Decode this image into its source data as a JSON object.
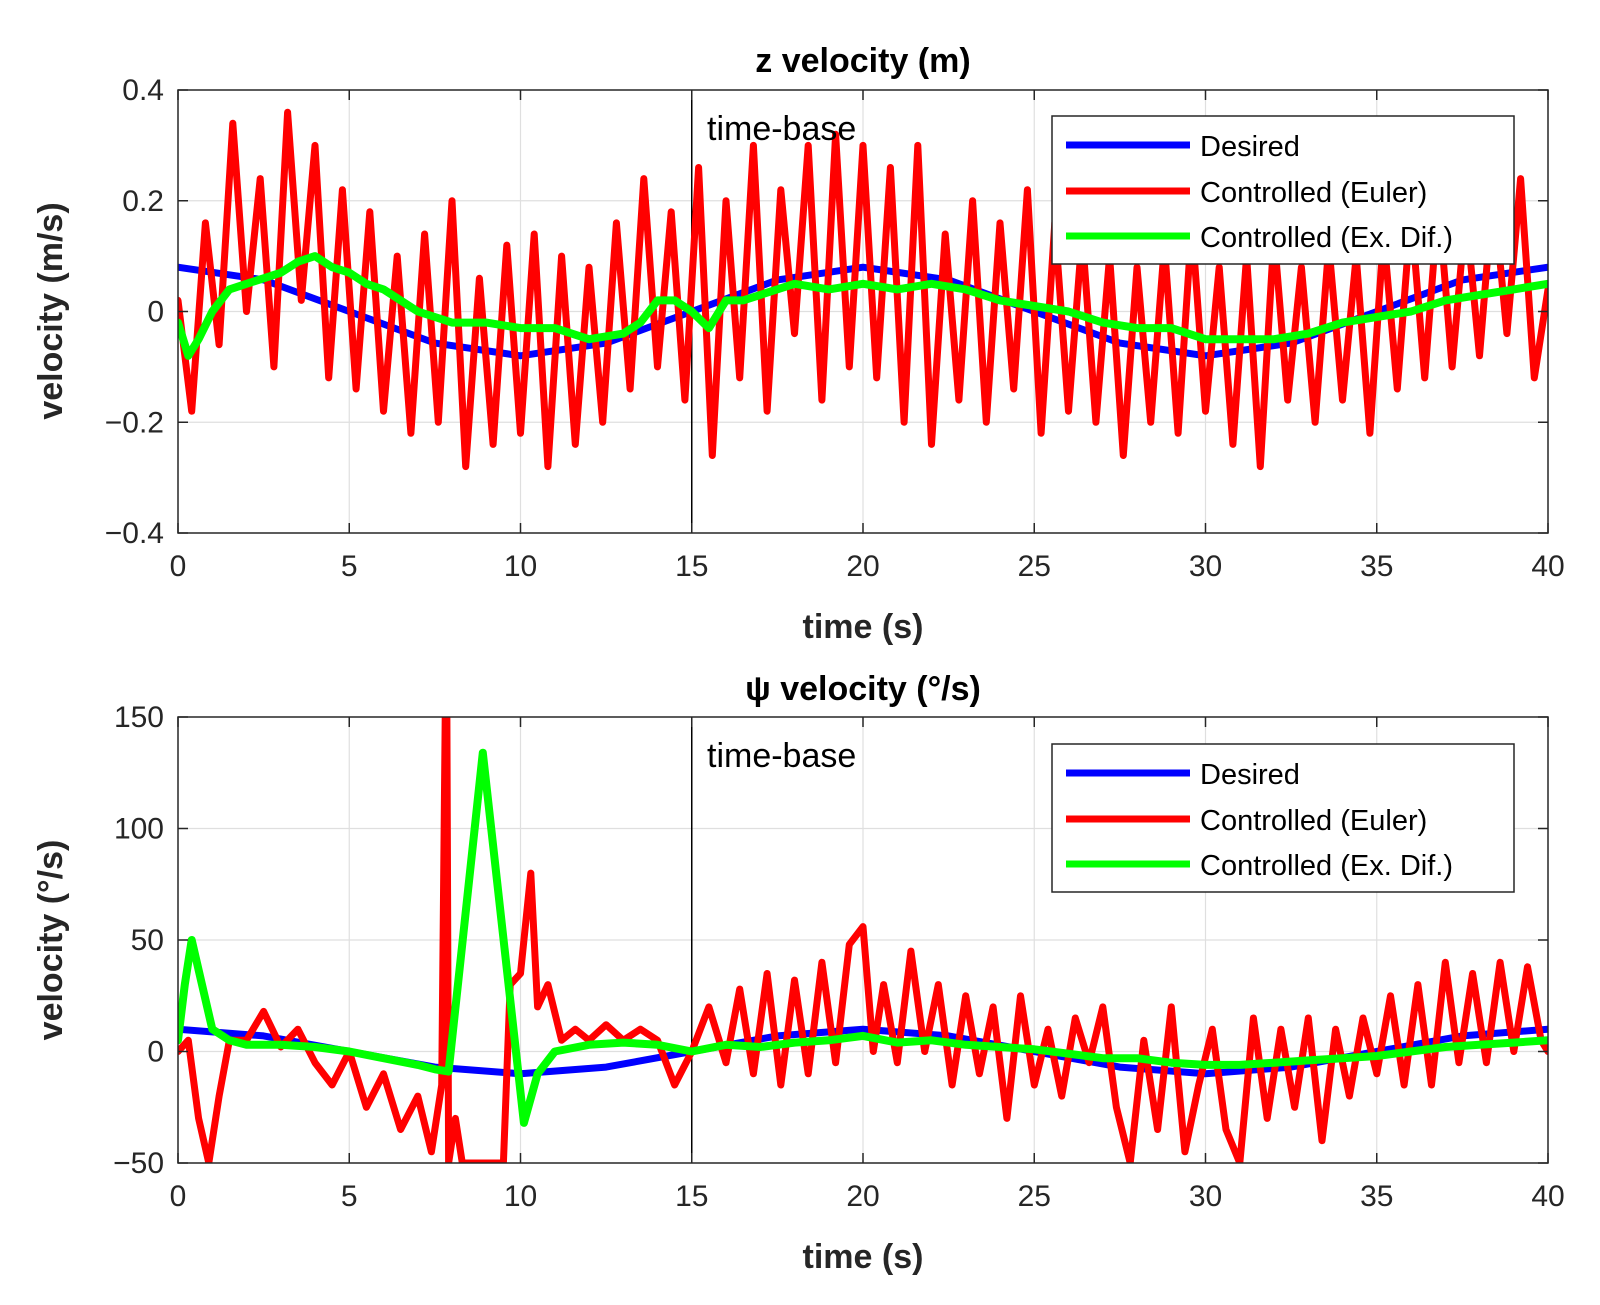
{
  "chart_data": [
    {
      "type": "line",
      "title": "z velocity (m)",
      "xlabel": "time (s)",
      "ylabel": "velocity (m/s)",
      "xlim": [
        0,
        40
      ],
      "ylim": [
        -0.4,
        0.4
      ],
      "xticks": [
        0,
        5,
        10,
        15,
        20,
        25,
        30,
        35,
        40
      ],
      "yticks": [
        -0.4,
        -0.2,
        0,
        0.2,
        0.4
      ],
      "xtick_labels": [
        "0",
        "5",
        "10",
        "15",
        "20",
        "25",
        "30",
        "35",
        "40"
      ],
      "ytick_labels": [
        "−0.4",
        "−0.2",
        "0",
        "0.2",
        "0.4"
      ],
      "grid": true,
      "annotation": "time-base",
      "annotation_x": 15,
      "vline_x": 15,
      "legend_position": "top-right",
      "series": [
        {
          "name": "Desired",
          "color": "#0000ff",
          "x": [
            0,
            2.5,
            5,
            7.5,
            10,
            12.5,
            15,
            17.5,
            20,
            22.5,
            25,
            27.5,
            30,
            32.5,
            35,
            37.5,
            40
          ],
          "y": [
            0.08,
            0.057,
            0.0,
            -0.057,
            -0.08,
            -0.057,
            0.0,
            0.057,
            0.08,
            0.057,
            0.0,
            -0.057,
            -0.08,
            -0.057,
            0.0,
            0.057,
            0.08
          ]
        },
        {
          "name": "Controlled (Euler)",
          "color": "#ff0000",
          "x": [
            0,
            0.4,
            0.8,
            1.2,
            1.6,
            2.0,
            2.4,
            2.8,
            3.2,
            3.6,
            4.0,
            4.4,
            4.8,
            5.2,
            5.6,
            6.0,
            6.4,
            6.8,
            7.2,
            7.6,
            8.0,
            8.4,
            8.8,
            9.2,
            9.6,
            10.0,
            10.4,
            10.8,
            11.2,
            11.6,
            12.0,
            12.4,
            12.8,
            13.2,
            13.6,
            14.0,
            14.4,
            14.8,
            15.2,
            15.6,
            16.0,
            16.4,
            16.8,
            17.2,
            17.6,
            18.0,
            18.4,
            18.8,
            19.2,
            19.6,
            20.0,
            20.4,
            20.8,
            21.2,
            21.6,
            22.0,
            22.4,
            22.8,
            23.2,
            23.6,
            24.0,
            24.4,
            24.8,
            25.2,
            25.6,
            26.0,
            26.4,
            26.8,
            27.2,
            27.6,
            28.0,
            28.4,
            28.8,
            29.2,
            29.6,
            30.0,
            30.4,
            30.8,
            31.2,
            31.6,
            32.0,
            32.4,
            32.8,
            33.2,
            33.6,
            34.0,
            34.4,
            34.8,
            35.2,
            35.6,
            36.0,
            36.4,
            36.8,
            37.2,
            37.6,
            38.0,
            38.4,
            38.8,
            39.2,
            39.6,
            40.0
          ],
          "y": [
            0.02,
            -0.18,
            0.16,
            -0.06,
            0.34,
            0.0,
            0.24,
            -0.1,
            0.36,
            0.02,
            0.3,
            -0.12,
            0.22,
            -0.14,
            0.18,
            -0.18,
            0.1,
            -0.22,
            0.14,
            -0.2,
            0.2,
            -0.28,
            0.06,
            -0.24,
            0.12,
            -0.22,
            0.14,
            -0.28,
            0.1,
            -0.24,
            0.08,
            -0.2,
            0.16,
            -0.14,
            0.24,
            -0.1,
            0.18,
            -0.16,
            0.26,
            -0.26,
            0.2,
            -0.12,
            0.3,
            -0.18,
            0.22,
            -0.04,
            0.3,
            -0.16,
            0.32,
            -0.1,
            0.3,
            -0.12,
            0.26,
            -0.2,
            0.3,
            -0.24,
            0.14,
            -0.16,
            0.2,
            -0.2,
            0.16,
            -0.14,
            0.22,
            -0.22,
            0.16,
            -0.18,
            0.14,
            -0.2,
            0.1,
            -0.26,
            0.08,
            -0.2,
            0.12,
            -0.22,
            0.16,
            -0.18,
            0.08,
            -0.24,
            0.1,
            -0.28,
            0.14,
            -0.16,
            0.08,
            -0.2,
            0.12,
            -0.16,
            0.1,
            -0.22,
            0.14,
            -0.14,
            0.18,
            -0.12,
            0.2,
            -0.1,
            0.18,
            -0.08,
            0.22,
            -0.04,
            0.24,
            -0.12,
            0.04
          ]
        },
        {
          "name": "Controlled (Ex. Dif.)",
          "color": "#00ff00",
          "x": [
            0,
            0.3,
            0.6,
            1.0,
            1.5,
            2.0,
            2.5,
            3.0,
            3.5,
            4.0,
            4.5,
            5.0,
            5.5,
            6.0,
            6.5,
            7.0,
            7.5,
            8.0,
            9.0,
            10.0,
            11.0,
            12.0,
            13.0,
            13.5,
            14.0,
            14.5,
            15.0,
            15.5,
            16.0,
            16.5,
            17.0,
            18.0,
            19.0,
            20.0,
            21.0,
            22.0,
            23.0,
            24.0,
            25.0,
            26.0,
            27.0,
            28.0,
            29.0,
            30.0,
            31.0,
            32.0,
            33.0,
            34.0,
            35.0,
            36.0,
            37.0,
            38.0,
            39.0,
            40.0
          ],
          "y": [
            -0.02,
            -0.08,
            -0.05,
            0.0,
            0.04,
            0.05,
            0.06,
            0.07,
            0.09,
            0.1,
            0.08,
            0.07,
            0.05,
            0.04,
            0.02,
            0.0,
            -0.01,
            -0.02,
            -0.02,
            -0.03,
            -0.03,
            -0.05,
            -0.04,
            -0.02,
            0.02,
            0.02,
            0.0,
            -0.03,
            0.02,
            0.02,
            0.03,
            0.05,
            0.04,
            0.05,
            0.04,
            0.05,
            0.04,
            0.02,
            0.01,
            0.0,
            -0.02,
            -0.03,
            -0.03,
            -0.05,
            -0.05,
            -0.05,
            -0.04,
            -0.02,
            -0.01,
            0.0,
            0.02,
            0.03,
            0.04,
            0.05
          ]
        }
      ]
    },
    {
      "type": "line",
      "title": "ψ velocity (°/s)",
      "xlabel": "time (s)",
      "ylabel": "velocity (°/s)",
      "xlim": [
        0,
        40
      ],
      "ylim": [
        -50,
        150
      ],
      "xticks": [
        0,
        5,
        10,
        15,
        20,
        25,
        30,
        35,
        40
      ],
      "yticks": [
        -50,
        0,
        50,
        100,
        150
      ],
      "xtick_labels": [
        "0",
        "5",
        "10",
        "15",
        "20",
        "25",
        "30",
        "35",
        "40"
      ],
      "ytick_labels": [
        "−50",
        "0",
        "50",
        "100",
        "150"
      ],
      "grid": true,
      "annotation": "time-base",
      "annotation_x": 15,
      "vline_x": 15,
      "legend_position": "top-right",
      "series": [
        {
          "name": "Desired",
          "color": "#0000ff",
          "x": [
            0,
            2.5,
            5,
            7.5,
            10,
            12.5,
            15,
            17.5,
            20,
            22.5,
            25,
            27.5,
            30,
            32.5,
            35,
            37.5,
            40
          ],
          "y": [
            10,
            7,
            0,
            -7,
            -10,
            -7,
            0,
            7,
            10,
            7,
            0,
            -7,
            -10,
            -7,
            0,
            7,
            10
          ]
        },
        {
          "name": "Controlled (Euler)",
          "color": "#ff0000",
          "x": [
            0,
            0.3,
            0.6,
            0.9,
            1.2,
            1.5,
            2.0,
            2.5,
            3.0,
            3.5,
            4.0,
            4.5,
            5.0,
            5.5,
            6.0,
            6.5,
            7.0,
            7.4,
            7.7,
            7.8,
            7.85,
            7.9,
            8.1,
            8.3,
            9.5,
            9.7,
            10.0,
            10.3,
            10.5,
            10.8,
            11.2,
            11.6,
            12.0,
            12.5,
            13.0,
            13.5,
            14.0,
            14.5,
            15.0,
            15.5,
            16.0,
            16.4,
            16.8,
            17.2,
            17.6,
            18.0,
            18.4,
            18.8,
            19.2,
            19.6,
            20.0,
            20.3,
            20.6,
            21.0,
            21.4,
            21.8,
            22.2,
            22.6,
            23.0,
            23.4,
            23.8,
            24.2,
            24.6,
            25.0,
            25.4,
            25.8,
            26.2,
            26.6,
            27.0,
            27.4,
            27.8,
            28.2,
            28.6,
            29.0,
            29.4,
            29.8,
            30.2,
            30.6,
            31.0,
            31.4,
            31.8,
            32.2,
            32.6,
            33.0,
            33.4,
            33.8,
            34.2,
            34.6,
            35.0,
            35.4,
            35.8,
            36.2,
            36.6,
            37.0,
            37.4,
            37.8,
            38.2,
            38.6,
            39.0,
            39.4,
            39.8,
            40.0
          ],
          "y": [
            0,
            5,
            -30,
            -50,
            -20,
            5,
            5,
            18,
            2,
            10,
            -5,
            -15,
            0,
            -25,
            -10,
            -35,
            -20,
            -45,
            -15,
            150,
            150,
            -50,
            -30,
            -50,
            -50,
            30,
            35,
            80,
            20,
            30,
            5,
            10,
            5,
            12,
            5,
            10,
            5,
            -15,
            0,
            20,
            -5,
            28,
            -10,
            35,
            -15,
            32,
            -10,
            40,
            -5,
            48,
            56,
            0,
            30,
            -5,
            45,
            0,
            30,
            -15,
            25,
            -10,
            20,
            -30,
            25,
            -15,
            10,
            -20,
            15,
            -5,
            20,
            -25,
            -50,
            5,
            -35,
            20,
            -45,
            -15,
            10,
            -35,
            -50,
            15,
            -30,
            10,
            -25,
            15,
            -40,
            10,
            -20,
            15,
            -10,
            25,
            -15,
            30,
            -15,
            40,
            -5,
            35,
            -5,
            40,
            0,
            38,
            5,
            0
          ]
        },
        {
          "name": "Controlled (Ex. Dif.)",
          "color": "#00ff00",
          "x": [
            0,
            0.2,
            0.4,
            0.7,
            1.0,
            1.5,
            2.0,
            3.0,
            4.0,
            5.0,
            6.0,
            7.0,
            7.5,
            7.9,
            8.9,
            10.1,
            10.5,
            11.0,
            12.0,
            13.0,
            14.0,
            15.0,
            16.0,
            17.0,
            18.0,
            19.0,
            20.0,
            21.0,
            22.0,
            23.0,
            24.0,
            25.0,
            26.0,
            27.0,
            28.0,
            29.0,
            30.0,
            31.0,
            32.0,
            33.0,
            34.0,
            35.0,
            36.0,
            37.0,
            38.0,
            39.0,
            40.0
          ],
          "y": [
            5,
            30,
            50,
            30,
            10,
            5,
            3,
            3,
            2,
            0,
            -3,
            -6,
            -8,
            -9,
            134,
            -32,
            -10,
            0,
            3,
            4,
            3,
            0,
            3,
            2,
            4,
            5,
            7,
            4,
            5,
            3,
            2,
            1,
            -1,
            -3,
            -3,
            -5,
            -6,
            -6,
            -5,
            -4,
            -3,
            -2,
            0,
            2,
            3,
            4,
            5
          ]
        }
      ]
    }
  ]
}
